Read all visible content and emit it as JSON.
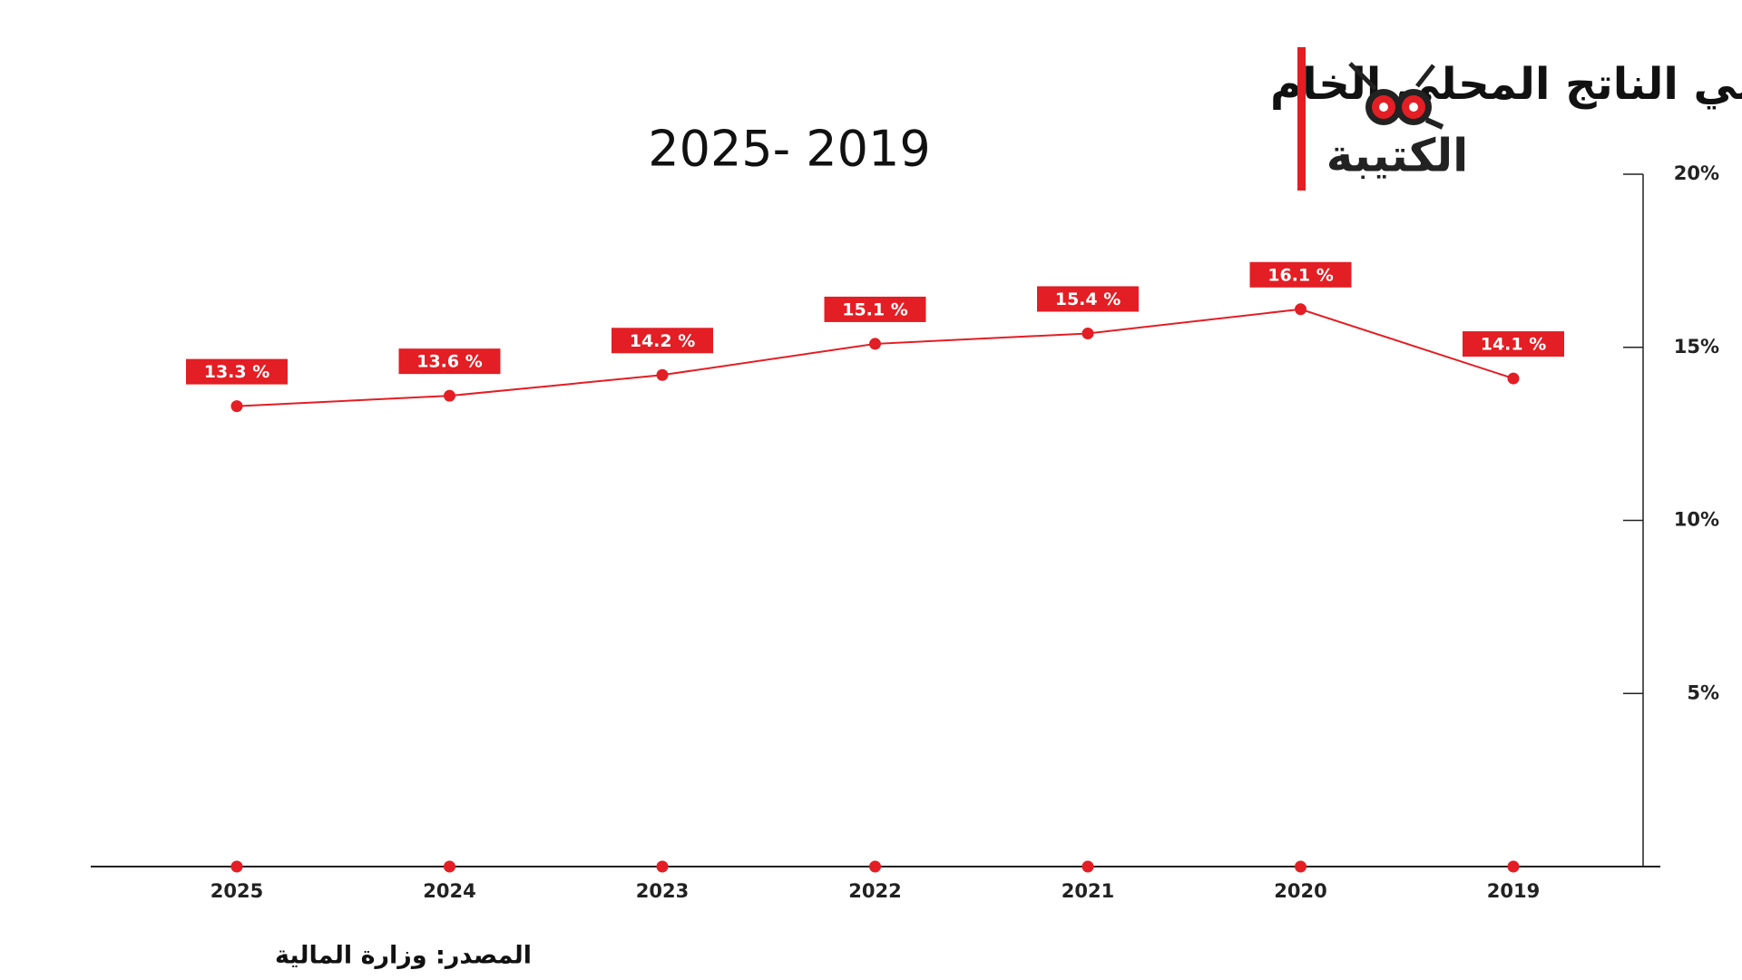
{
  "logo": "الكتيبة",
  "chart_data": {
    "type": "line",
    "title": "حصة كتلة الأجور من إجمالي الناتج المحلي الخام",
    "subtitle": "2025- 2019",
    "source": "المصدر: وزارة المالية",
    "categories": [
      "2025",
      "2024",
      "2023",
      "2022",
      "2021",
      "2020",
      "2019"
    ],
    "values": [
      13.3,
      13.6,
      14.2,
      15.1,
      15.4,
      16.1,
      14.1
    ],
    "value_labels": [
      "13.3 %",
      "13.6 %",
      "14.2 %",
      "15.1 %",
      "15.4 %",
      "16.1 %",
      "14.1 %"
    ],
    "color": "#e31e24",
    "ylim": [
      0,
      20
    ],
    "yticks": [
      {
        "value": 5,
        "label": "5%"
      },
      {
        "value": 10,
        "label": "10%"
      },
      {
        "value": 15,
        "label": "15%"
      },
      {
        "value": 20,
        "label": "20%"
      }
    ],
    "y_axis_side": "right"
  }
}
